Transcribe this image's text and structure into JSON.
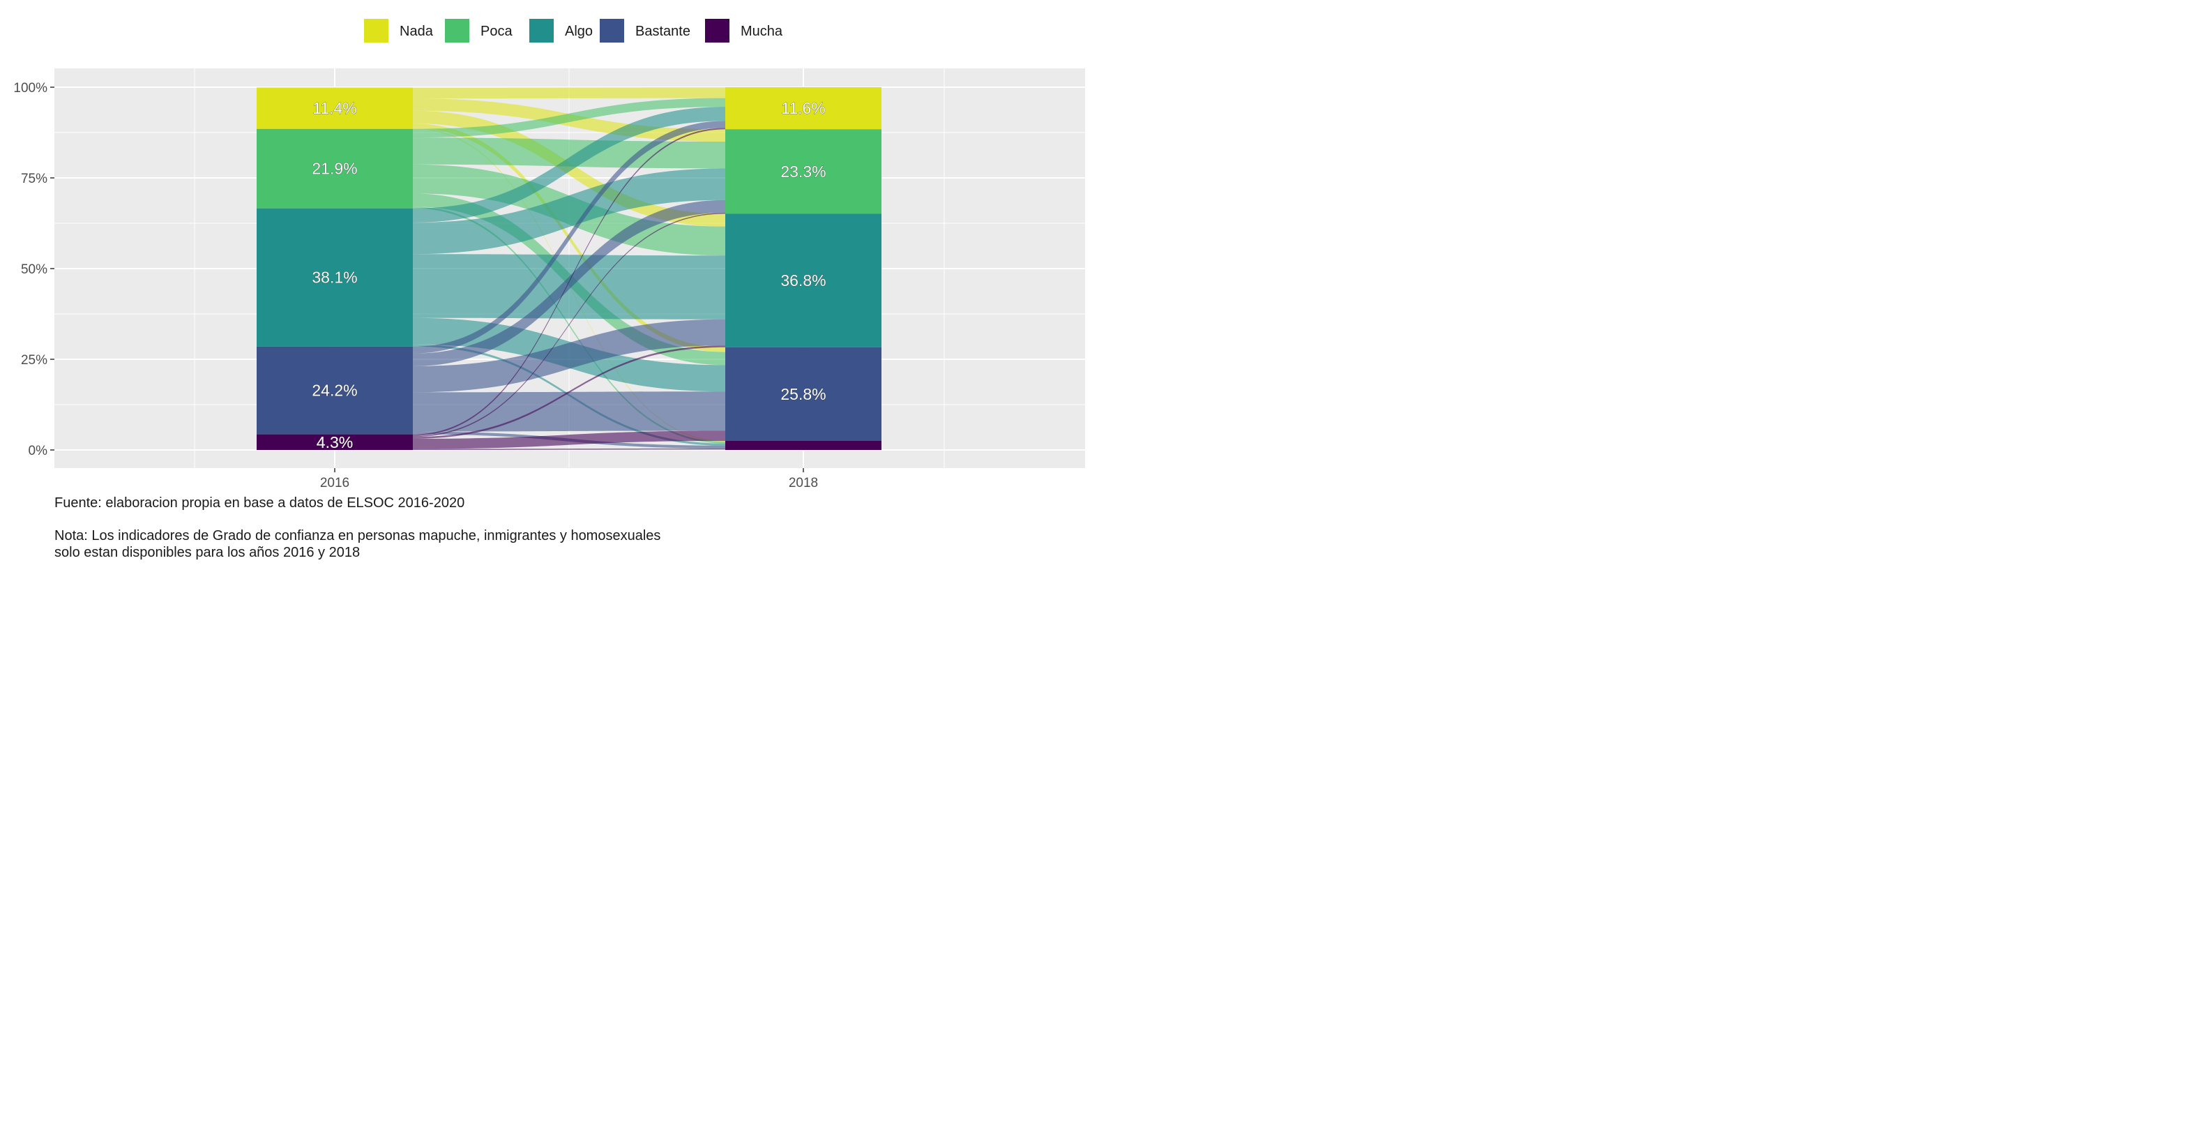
{
  "chart_data": {
    "type": "alluvial",
    "categories": [
      "2016",
      "2018"
    ],
    "levels": [
      "Nada",
      "Poca",
      "Algo",
      "Bastante",
      "Mucha"
    ],
    "colors": {
      "Nada": "#DDE318",
      "Poca": "#4AC16D",
      "Algo": "#218F8B",
      "Bastante": "#3B528B",
      "Mucha": "#440154"
    },
    "y_tick_labels": [
      "0%",
      "25%",
      "50%",
      "75%",
      "100%"
    ],
    "ylim": [
      0,
      100
    ],
    "grid": true,
    "legend_position": "top",
    "series": [
      {
        "name": "Nada",
        "values": [
          11.4,
          11.6
        ],
        "labels": [
          "11.4%",
          "11.6%"
        ]
      },
      {
        "name": "Poca",
        "values": [
          21.9,
          23.3
        ],
        "labels": [
          "21.9%",
          "23.3%"
        ]
      },
      {
        "name": "Algo",
        "values": [
          38.1,
          36.8
        ],
        "labels": [
          "38.1%",
          "36.8%"
        ]
      },
      {
        "name": "Bastante",
        "values": [
          24.2,
          25.8
        ],
        "labels": [
          "24.2%",
          "25.8%"
        ]
      },
      {
        "name": "Mucha",
        "values": [
          4.3,
          2.5
        ],
        "labels": [
          "4.3%",
          ""
        ]
      }
    ],
    "flows": [
      {
        "from": "Nada",
        "to": "Nada",
        "value": 3.0
      },
      {
        "from": "Nada",
        "to": "Poca",
        "value": 3.4
      },
      {
        "from": "Nada",
        "to": "Algo",
        "value": 3.5
      },
      {
        "from": "Nada",
        "to": "Bastante",
        "value": 1.3
      },
      {
        "from": "Nada",
        "to": "Mucha",
        "value": 0.2
      },
      {
        "from": "Poca",
        "to": "Nada",
        "value": 2.4
      },
      {
        "from": "Poca",
        "to": "Poca",
        "value": 7.4
      },
      {
        "from": "Poca",
        "to": "Algo",
        "value": 8.0
      },
      {
        "from": "Poca",
        "to": "Bastante",
        "value": 3.6
      },
      {
        "from": "Poca",
        "to": "Mucha",
        "value": 0.5
      },
      {
        "from": "Algo",
        "to": "Nada",
        "value": 3.9
      },
      {
        "from": "Algo",
        "to": "Poca",
        "value": 8.7
      },
      {
        "from": "Algo",
        "to": "Algo",
        "value": 17.6
      },
      {
        "from": "Algo",
        "to": "Bastante",
        "value": 7.3
      },
      {
        "from": "Algo",
        "to": "Mucha",
        "value": 0.6
      },
      {
        "from": "Bastante",
        "to": "Nada",
        "value": 1.9
      },
      {
        "from": "Bastante",
        "to": "Poca",
        "value": 3.5
      },
      {
        "from": "Bastante",
        "to": "Algo",
        "value": 7.2
      },
      {
        "from": "Bastante",
        "to": "Bastante",
        "value": 10.8
      },
      {
        "from": "Bastante",
        "to": "Mucha",
        "value": 0.8
      },
      {
        "from": "Mucha",
        "to": "Nada",
        "value": 0.4
      },
      {
        "from": "Mucha",
        "to": "Poca",
        "value": 0.3
      },
      {
        "from": "Mucha",
        "to": "Algo",
        "value": 0.5
      },
      {
        "from": "Mucha",
        "to": "Bastante",
        "value": 2.8
      },
      {
        "from": "Mucha",
        "to": "Mucha",
        "value": 0.3
      }
    ]
  },
  "caption": {
    "source": "Fuente: elaboracion propia en base a datos de ELSOC 2016-2020",
    "note_line1": "Nota: Los indicadores de Grado de confianza en personas mapuche, inmigrantes y homosexuales",
    "note_line2": "solo estan disponibles para los años 2016 y 2018"
  }
}
